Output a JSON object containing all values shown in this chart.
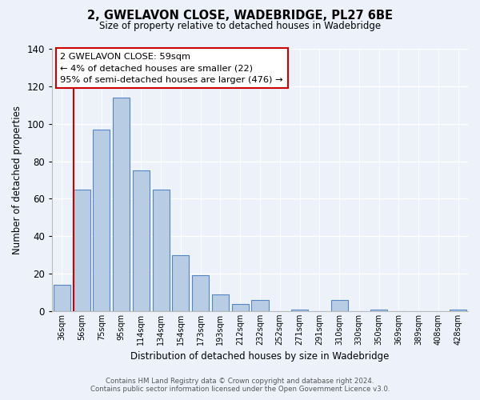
{
  "title": "2, GWELAVON CLOSE, WADEBRIDGE, PL27 6BE",
  "subtitle": "Size of property relative to detached houses in Wadebridge",
  "xlabel": "Distribution of detached houses by size in Wadebridge",
  "ylabel": "Number of detached properties",
  "bar_labels": [
    "36sqm",
    "56sqm",
    "75sqm",
    "95sqm",
    "114sqm",
    "134sqm",
    "154sqm",
    "173sqm",
    "193sqm",
    "212sqm",
    "232sqm",
    "252sqm",
    "271sqm",
    "291sqm",
    "310sqm",
    "330sqm",
    "350sqm",
    "369sqm",
    "389sqm",
    "408sqm",
    "428sqm"
  ],
  "bar_values": [
    14,
    65,
    97,
    114,
    75,
    65,
    30,
    19,
    9,
    4,
    6,
    0,
    1,
    0,
    6,
    0,
    1,
    0,
    0,
    0,
    1
  ],
  "bar_color": "#b8cce4",
  "bar_edge_color": "#5585c5",
  "ylim": [
    0,
    140
  ],
  "yticks": [
    0,
    20,
    40,
    60,
    80,
    100,
    120,
    140
  ],
  "property_line_color": "#cc0000",
  "annotation_text": "2 GWELAVON CLOSE: 59sqm\n← 4% of detached houses are smaller (22)\n95% of semi-detached houses are larger (476) →",
  "annotation_box_color": "#ffffff",
  "annotation_box_edge": "#cc0000",
  "footer_line1": "Contains HM Land Registry data © Crown copyright and database right 2024.",
  "footer_line2": "Contains public sector information licensed under the Open Government Licence v3.0.",
  "bg_color": "#edf2fa"
}
